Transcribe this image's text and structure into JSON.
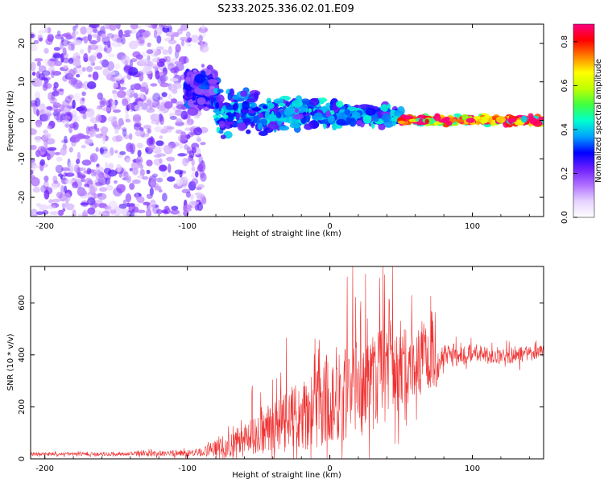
{
  "figure": {
    "title": "S233.2025.336.02.01.E09"
  },
  "chart_data": [
    {
      "type": "heatmap",
      "title": "S233.2025.336.02.01.E09",
      "xlabel": "Height of straight line (km)",
      "ylabel": "Frequency (Hz)",
      "xlim": [
        -210,
        150
      ],
      "ylim": [
        -25,
        25
      ],
      "x_ticks": [
        -200,
        -100,
        0,
        100
      ],
      "y_ticks": [
        -20,
        -10,
        0,
        10,
        20
      ],
      "colorbar": {
        "label": "Normalized spectral amplitude",
        "range": [
          0.0,
          0.88
        ],
        "ticks": [
          0.0,
          0.2,
          0.4,
          0.6,
          0.8
        ],
        "colors": [
          "#ffffff",
          "#e6d2ff",
          "#b070ff",
          "#7020ff",
          "#0000ff",
          "#00a0ff",
          "#00ffd0",
          "#40ff40",
          "#c0ff00",
          "#ffff00",
          "#ff8000",
          "#ff0000",
          "#ff0080"
        ]
      },
      "regions": [
        {
          "x_range": [
            -210,
            -88
          ],
          "description_level": "noise",
          "amplitude": [
            0.05,
            0.25
          ],
          "freq_spread": 25
        },
        {
          "x_range": [
            -100,
            -80
          ],
          "amplitude": [
            0.15,
            0.35
          ],
          "freq_center": 8,
          "freq_spread": 6
        },
        {
          "x_range": [
            -80,
            50
          ],
          "amplitude": [
            0.2,
            0.45
          ],
          "freq_center": 2,
          "freq_spread": 8
        },
        {
          "x_range": [
            50,
            150
          ],
          "amplitude": [
            0.4,
            0.88
          ],
          "freq_center": 0,
          "freq_spread": 1.5
        }
      ]
    },
    {
      "type": "line",
      "xlabel": "Height of straight line (km)",
      "ylabel": "SNR (10 * v/v)",
      "xlim": [
        -210,
        150
      ],
      "ylim": [
        0,
        740
      ],
      "x_ticks": [
        -200,
        -100,
        0,
        100
      ],
      "y_ticks": [
        0,
        200,
        400,
        600
      ],
      "series": [
        {
          "name": "SNR",
          "color": "#f03030",
          "envelope_x": [
            -210,
            -150,
            -100,
            -90,
            -80,
            -60,
            -40,
            -20,
            0,
            20,
            40,
            60,
            70,
            75,
            80,
            100,
            120,
            150
          ],
          "envelope_mean": [
            18,
            18,
            22,
            25,
            40,
            70,
            120,
            170,
            230,
            280,
            330,
            370,
            380,
            330,
            395,
            405,
            395,
            405
          ],
          "envelope_amp": [
            12,
            12,
            25,
            30,
            60,
            120,
            180,
            260,
            320,
            360,
            340,
            250,
            230,
            150,
            90,
            70,
            60,
            60
          ],
          "peak_max": 740
        }
      ]
    }
  ]
}
